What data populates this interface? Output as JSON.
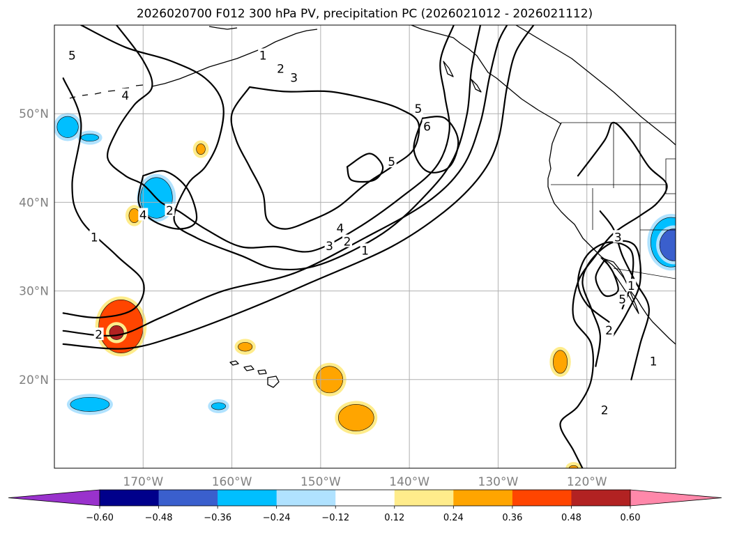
{
  "chart_data": {
    "type": "contour-map",
    "title": "2026020700 F012 300 hPa PV, precipitation PC (2026021012 - 2026021112)",
    "map_extent": {
      "lon_min": -180,
      "lon_max": -110,
      "lat_min": 10,
      "lat_max": 60
    },
    "gridlines": true,
    "lat_ticks": [
      {
        "lat": 50,
        "label": "50°N"
      },
      {
        "lat": 40,
        "label": "40°N"
      },
      {
        "lat": 30,
        "label": "30°N"
      },
      {
        "lat": 20,
        "label": "20°N"
      }
    ],
    "lon_ticks": [
      {
        "lon": -170,
        "label": "170°W"
      },
      {
        "lon": -160,
        "label": "160°W"
      },
      {
        "lon": -150,
        "label": "150°W"
      },
      {
        "lon": -140,
        "label": "140°W"
      },
      {
        "lon": -130,
        "label": "130°W"
      },
      {
        "lon": -120,
        "label": "120°W"
      }
    ],
    "colorbar": {
      "extend": "both",
      "levels": [
        -0.72,
        -0.6,
        -0.48,
        -0.36,
        -0.24,
        -0.12,
        0.12,
        0.24,
        0.36,
        0.48,
        0.6,
        0.72
      ],
      "colors": [
        "#9932cc",
        "#00008b",
        "#3a5fcd",
        "#00bfff",
        "#b0e2ff",
        "#ffffff",
        "#ffec8b",
        "#ffa500",
        "#ff4500",
        "#b22222",
        "#ff88aa"
      ],
      "tick_labels": [
        "−0.60",
        "−0.48",
        "−0.36",
        "−0.24",
        "−0.12",
        "0.12",
        "0.24",
        "0.36",
        "0.48",
        "0.60"
      ]
    },
    "pv_contours": [
      {
        "level": 1,
        "label": "1",
        "points": [
          [
            -179,
            54
          ],
          [
            -177,
            49
          ],
          [
            -178,
            42
          ],
          [
            -177,
            38
          ],
          [
            -173,
            34
          ],
          [
            -170,
            31
          ],
          [
            -171,
            28
          ],
          [
            -175,
            27
          ],
          [
            -179,
            27.5
          ]
        ]
      },
      {
        "level": 1,
        "label": "1",
        "points": [
          [
            -179,
            24
          ],
          [
            -172,
            23.5
          ],
          [
            -166,
            25
          ],
          [
            -158,
            28
          ],
          [
            -151,
            31
          ],
          [
            -142,
            35
          ],
          [
            -136,
            39
          ],
          [
            -132,
            43
          ],
          [
            -130,
            47
          ],
          [
            -129,
            53
          ],
          [
            -128,
            57
          ],
          [
            -126,
            60
          ]
        ]
      },
      {
        "level": 2,
        "label": "2",
        "points": [
          [
            -179,
            25.5
          ],
          [
            -173,
            25
          ],
          [
            -168,
            27
          ],
          [
            -161,
            30
          ],
          [
            -153,
            32
          ],
          [
            -145,
            36
          ],
          [
            -138,
            40
          ],
          [
            -134,
            44
          ],
          [
            -132,
            49
          ],
          [
            -131,
            54
          ],
          [
            -130,
            58
          ],
          [
            -129,
            60
          ]
        ]
      },
      {
        "level": 3,
        "label": "3",
        "points": [
          [
            -177,
            60
          ],
          [
            -172,
            57.5
          ],
          [
            -167,
            56
          ],
          [
            -163,
            54
          ],
          [
            -161,
            51
          ],
          [
            -161.5,
            47
          ],
          [
            -163,
            44
          ],
          [
            -165,
            42
          ],
          [
            -166.5,
            38
          ],
          [
            -164,
            36
          ],
          [
            -159,
            34
          ],
          [
            -155,
            32.5
          ],
          [
            -150,
            33
          ],
          [
            -143,
            36.5
          ],
          [
            -138,
            41
          ],
          [
            -135,
            45
          ],
          [
            -133.5,
            50
          ],
          [
            -133,
            55
          ],
          [
            -132,
            60
          ]
        ]
      },
      {
        "level": 4,
        "label": "4",
        "points": [
          [
            -173,
            60
          ],
          [
            -170,
            56
          ],
          [
            -169,
            53
          ],
          [
            -171,
            51
          ],
          [
            -173,
            48
          ],
          [
            -174,
            45
          ],
          [
            -172,
            43
          ],
          [
            -170,
            42
          ],
          [
            -168,
            40
          ],
          [
            -166,
            39
          ],
          [
            -163,
            37
          ],
          [
            -159,
            35
          ],
          [
            -155,
            35
          ],
          [
            -151,
            34.5
          ],
          [
            -146,
            37
          ],
          [
            -141,
            40.5
          ],
          [
            -137,
            44
          ],
          [
            -135.5,
            48
          ],
          [
            -136,
            52
          ],
          [
            -136.5,
            56
          ],
          [
            -135,
            60
          ]
        ]
      },
      {
        "level": 5,
        "label": "5",
        "points": [
          [
            -158,
            53
          ],
          [
            -154,
            52.5
          ],
          [
            -149,
            52.5
          ],
          [
            -144,
            51.5
          ],
          [
            -141,
            50.5
          ],
          [
            -139,
            49
          ],
          [
            -139.5,
            46
          ],
          [
            -142,
            44
          ],
          [
            -145,
            42
          ],
          [
            -148,
            39.5
          ],
          [
            -151,
            38
          ],
          [
            -154,
            37
          ],
          [
            -156,
            38
          ],
          [
            -156.5,
            41
          ],
          [
            -158,
            44
          ],
          [
            -159.5,
            47
          ],
          [
            -160,
            50
          ],
          [
            -158,
            53
          ]
        ]
      },
      {
        "level": 5,
        "label": "5",
        "points": [
          [
            -147,
            44
          ],
          [
            -144.5,
            45.5
          ],
          [
            -143,
            44
          ],
          [
            -144,
            42.5
          ],
          [
            -146.5,
            42.5
          ],
          [
            -147,
            44
          ]
        ]
      },
      {
        "level": 6,
        "label": "6",
        "points": [
          [
            -138.5,
            49.5
          ],
          [
            -136,
            49.5
          ],
          [
            -134.5,
            47
          ],
          [
            -135.5,
            44
          ],
          [
            -138,
            43.5
          ],
          [
            -139.5,
            46
          ],
          [
            -138.5,
            49.5
          ]
        ]
      },
      {
        "level": 2,
        "label": "2",
        "points": [
          [
            -170,
            43
          ],
          [
            -167.5,
            43.5
          ],
          [
            -165,
            41.5
          ],
          [
            -164,
            38
          ],
          [
            -166,
            37
          ],
          [
            -169,
            38
          ],
          [
            -170.5,
            40
          ],
          [
            -170,
            43
          ]
        ]
      },
      {
        "level": 1,
        "label": "1",
        "points": [
          [
            -120.5,
            10
          ],
          [
            -121.5,
            12
          ],
          [
            -123,
            15
          ],
          [
            -121,
            17
          ],
          [
            -119.5,
            20
          ],
          [
            -119.5,
            24
          ],
          [
            -121.5,
            27
          ],
          [
            -121,
            31
          ],
          [
            -119,
            34
          ],
          [
            -117,
            36.5
          ],
          [
            -114,
            38.5
          ],
          [
            -112,
            40
          ],
          [
            -111,
            42
          ],
          [
            -113,
            44
          ],
          [
            -115,
            47
          ],
          [
            -117,
            49
          ],
          [
            -118,
            47
          ],
          [
            -121,
            43
          ]
        ]
      },
      {
        "level": 1,
        "label": "1",
        "points": [
          [
            -115,
            20
          ],
          [
            -114,
            24
          ],
          [
            -113,
            28
          ],
          [
            -114.5,
            31
          ],
          [
            -116,
            34
          ],
          [
            -117,
            37
          ],
          [
            -118.5,
            39
          ]
        ]
      },
      {
        "level": 2,
        "label": "2",
        "points": [
          [
            -119,
            21.5
          ],
          [
            -118.5,
            25
          ],
          [
            -119.5,
            28
          ],
          [
            -120.5,
            31
          ],
          [
            -119.5,
            33.5
          ],
          [
            -117,
            35.5
          ],
          [
            -114.5,
            35
          ],
          [
            -114,
            31
          ],
          [
            -115.5,
            27.5
          ],
          [
            -117,
            25
          ]
        ]
      },
      {
        "level": 3,
        "label": "3",
        "points": [
          [
            -117.5,
            26.5
          ],
          [
            -120,
            28.5
          ],
          [
            -121,
            31
          ],
          [
            -120,
            34
          ],
          [
            -117.5,
            35.5
          ],
          [
            -115,
            34.5
          ],
          [
            -115,
            31
          ],
          [
            -116,
            28
          ]
        ]
      },
      {
        "level": 5,
        "label": "5",
        "points": [
          [
            -118,
            33.5
          ],
          [
            -119,
            31.5
          ],
          [
            -118,
            29.5
          ],
          [
            -116.5,
            30
          ],
          [
            -117,
            32
          ],
          [
            -118,
            33.5
          ]
        ]
      }
    ],
    "pv_labels": [
      {
        "label": "5",
        "lon": -178,
        "lat": 56.5
      },
      {
        "label": "4",
        "lon": -172,
        "lat": 52
      },
      {
        "label": "1",
        "lon": -156.5,
        "lat": 56.5
      },
      {
        "label": "2",
        "lon": -154.5,
        "lat": 55
      },
      {
        "label": "3",
        "lon": -153,
        "lat": 54
      },
      {
        "label": "5",
        "lon": -139,
        "lat": 50.5
      },
      {
        "label": "6",
        "lon": -138,
        "lat": 48.5
      },
      {
        "label": "5",
        "lon": -142,
        "lat": 44.5
      },
      {
        "label": "4",
        "lon": -170,
        "lat": 38.5
      },
      {
        "label": "2",
        "lon": -167,
        "lat": 39
      },
      {
        "label": "4",
        "lon": -147.8,
        "lat": 37
      },
      {
        "label": "3",
        "lon": -149,
        "lat": 35
      },
      {
        "label": "2",
        "lon": -147,
        "lat": 35.5
      },
      {
        "label": "1",
        "lon": -145,
        "lat": 34.5
      },
      {
        "label": "1",
        "lon": -175.5,
        "lat": 36
      },
      {
        "label": "2",
        "lon": -175,
        "lat": 25
      },
      {
        "label": "3",
        "lon": -116.5,
        "lat": 36
      },
      {
        "label": "1",
        "lon": -115,
        "lat": 30.5
      },
      {
        "label": "5",
        "lon": -116,
        "lat": 29
      },
      {
        "label": "2",
        "lon": -117.5,
        "lat": 25.5
      },
      {
        "label": "1",
        "lon": -112.5,
        "lat": 22
      },
      {
        "label": "2",
        "lon": -118,
        "lat": 16.5
      }
    ],
    "precip_regions": [
      {
        "lon": -178.5,
        "lat": 48.5,
        "rx": 1.2,
        "ry": 1.2,
        "value": -0.3
      },
      {
        "lon": -176,
        "lat": 47.3,
        "rx": 1.0,
        "ry": 0.4,
        "value": -0.3
      },
      {
        "lon": -168.5,
        "lat": 40.5,
        "rx": 1.8,
        "ry": 2.3,
        "value": -0.3
      },
      {
        "lon": -171,
        "lat": 38.5,
        "rx": 0.6,
        "ry": 0.8,
        "value": 0.28
      },
      {
        "lon": -163.5,
        "lat": 46,
        "rx": 0.5,
        "ry": 0.6,
        "value": 0.28
      },
      {
        "lon": -172.5,
        "lat": 26,
        "rx": 2.5,
        "ry": 3.0,
        "value": 0.42
      },
      {
        "lon": -173,
        "lat": 25.3,
        "rx": 0.8,
        "ry": 0.8,
        "value": 0.5
      },
      {
        "lon": -176,
        "lat": 17.2,
        "rx": 2.2,
        "ry": 0.8,
        "value": -0.3
      },
      {
        "lon": -161.5,
        "lat": 17,
        "rx": 0.8,
        "ry": 0.4,
        "value": -0.3
      },
      {
        "lon": -158.5,
        "lat": 23.7,
        "rx": 0.8,
        "ry": 0.5,
        "value": 0.28
      },
      {
        "lon": -149,
        "lat": 20,
        "rx": 1.5,
        "ry": 1.5,
        "value": 0.28
      },
      {
        "lon": -146,
        "lat": 15.7,
        "rx": 2.0,
        "ry": 1.5,
        "value": 0.28
      },
      {
        "lon": -123,
        "lat": 22,
        "rx": 0.8,
        "ry": 1.3,
        "value": 0.28
      },
      {
        "lon": -110.5,
        "lat": 35.5,
        "rx": 2.3,
        "ry": 2.8,
        "value": -0.3
      },
      {
        "lon": -110.2,
        "lat": 35.2,
        "rx": 1.6,
        "ry": 1.8,
        "value": -0.42
      },
      {
        "lon": -121.5,
        "lat": 10,
        "rx": 0.5,
        "ry": 0.3,
        "value": 0.28
      }
    ]
  }
}
